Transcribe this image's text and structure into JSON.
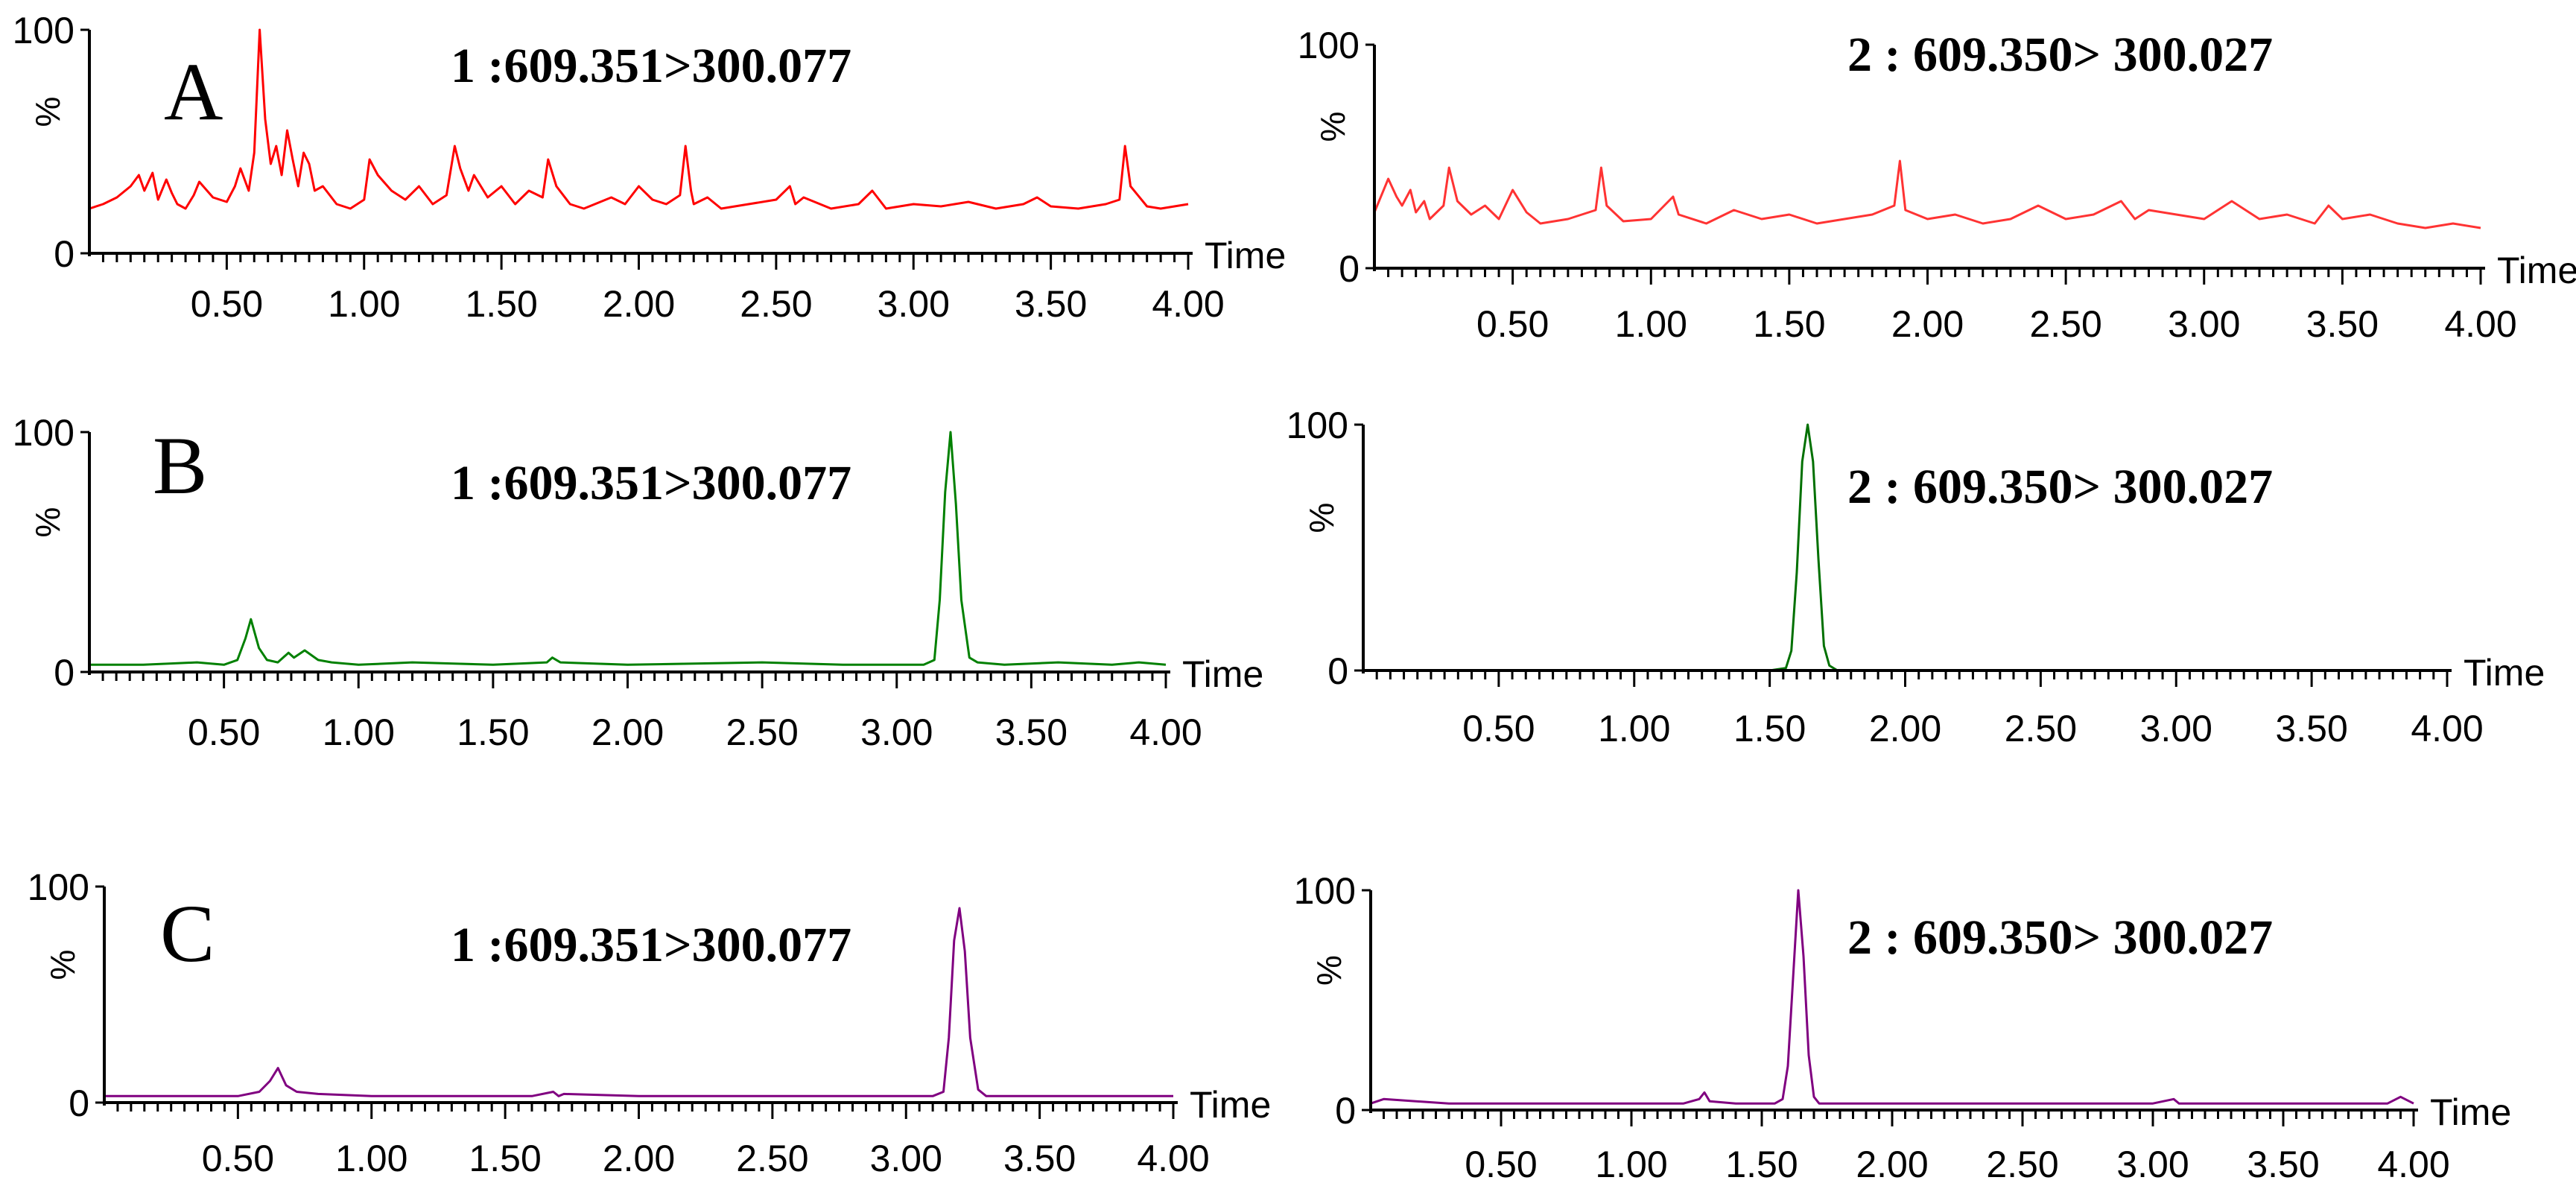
{
  "chart_data": [
    {
      "type": "line",
      "panel": "A",
      "title": "1 :609.351>300.077",
      "xlabel": "Time",
      "ylabel": "%",
      "xlim": [
        0,
        4.0
      ],
      "ylim": [
        0,
        100
      ],
      "xticks": [
        "0.50",
        "1.00",
        "1.50",
        "2.00",
        "2.50",
        "3.00",
        "3.50",
        "4.00"
      ],
      "yticks": [
        "0",
        "100"
      ],
      "color": "#ff0000",
      "series": [
        {
          "name": "1 :609.351>300.077",
          "x": [
            0.0,
            0.05,
            0.1,
            0.15,
            0.18,
            0.2,
            0.23,
            0.25,
            0.28,
            0.3,
            0.32,
            0.35,
            0.38,
            0.4,
            0.45,
            0.5,
            0.53,
            0.55,
            0.58,
            0.6,
            0.62,
            0.64,
            0.66,
            0.68,
            0.7,
            0.72,
            0.74,
            0.76,
            0.78,
            0.8,
            0.82,
            0.85,
            0.9,
            0.95,
            1.0,
            1.02,
            1.05,
            1.1,
            1.15,
            1.2,
            1.25,
            1.3,
            1.33,
            1.35,
            1.38,
            1.4,
            1.45,
            1.5,
            1.55,
            1.6,
            1.65,
            1.67,
            1.7,
            1.75,
            1.8,
            1.9,
            1.95,
            2.0,
            2.05,
            2.1,
            2.15,
            2.17,
            2.19,
            2.2,
            2.25,
            2.3,
            2.4,
            2.5,
            2.55,
            2.57,
            2.6,
            2.7,
            2.8,
            2.85,
            2.9,
            3.0,
            3.1,
            3.2,
            3.3,
            3.4,
            3.45,
            3.5,
            3.6,
            3.7,
            3.75,
            3.77,
            3.79,
            3.85,
            3.9,
            4.0
          ],
          "y": [
            20,
            22,
            25,
            30,
            35,
            28,
            36,
            24,
            33,
            27,
            22,
            20,
            26,
            32,
            25,
            23,
            30,
            38,
            28,
            45,
            100,
            60,
            40,
            48,
            35,
            55,
            42,
            30,
            45,
            40,
            28,
            30,
            22,
            20,
            24,
            42,
            35,
            28,
            24,
            30,
            22,
            26,
            48,
            38,
            28,
            35,
            25,
            30,
            22,
            28,
            25,
            42,
            30,
            22,
            20,
            25,
            22,
            30,
            24,
            22,
            26,
            48,
            28,
            22,
            25,
            20,
            22,
            24,
            30,
            22,
            25,
            20,
            22,
            28,
            20,
            22,
            21,
            23,
            20,
            22,
            25,
            21,
            20,
            22,
            24,
            48,
            30,
            21,
            20,
            22
          ]
        }
      ]
    },
    {
      "type": "line",
      "panel": "A",
      "title": "2 : 609.350> 300.027",
      "xlabel": "Time",
      "ylabel": "%",
      "xlim": [
        0,
        4.0
      ],
      "ylim": [
        0,
        100
      ],
      "xticks": [
        "0.50",
        "1.00",
        "1.50",
        "2.00",
        "2.50",
        "3.00",
        "3.50",
        "4.00"
      ],
      "yticks": [
        "0",
        "100"
      ],
      "color": "#ff3333",
      "series": [
        {
          "name": "2 : 609.350> 300.027",
          "x": [
            0.0,
            0.05,
            0.08,
            0.1,
            0.13,
            0.15,
            0.18,
            0.2,
            0.25,
            0.27,
            0.3,
            0.35,
            0.4,
            0.45,
            0.5,
            0.55,
            0.6,
            0.7,
            0.8,
            0.82,
            0.84,
            0.9,
            1.0,
            1.08,
            1.1,
            1.2,
            1.3,
            1.4,
            1.5,
            1.6,
            1.7,
            1.8,
            1.88,
            1.9,
            1.92,
            2.0,
            2.1,
            2.2,
            2.3,
            2.4,
            2.5,
            2.6,
            2.7,
            2.75,
            2.8,
            2.9,
            3.0,
            3.05,
            3.1,
            3.2,
            3.3,
            3.4,
            3.45,
            3.5,
            3.6,
            3.7,
            3.8,
            3.9,
            4.0
          ],
          "y": [
            25,
            40,
            32,
            28,
            35,
            25,
            30,
            22,
            28,
            45,
            30,
            24,
            28,
            22,
            35,
            25,
            20,
            22,
            26,
            45,
            28,
            21,
            22,
            32,
            24,
            20,
            26,
            22,
            24,
            20,
            22,
            24,
            28,
            48,
            26,
            22,
            24,
            20,
            22,
            28,
            22,
            24,
            30,
            22,
            26,
            24,
            22,
            26,
            30,
            22,
            24,
            20,
            28,
            22,
            24,
            20,
            18,
            20,
            18
          ]
        }
      ]
    },
    {
      "type": "line",
      "panel": "B",
      "title": "1 :609.351>300.077",
      "xlabel": "Time",
      "ylabel": "%",
      "xlim": [
        0,
        4.0
      ],
      "ylim": [
        0,
        100
      ],
      "xticks": [
        "0.50",
        "1.00",
        "1.50",
        "2.00",
        "2.50",
        "3.00",
        "3.50",
        "4.00"
      ],
      "yticks": [
        "0",
        "100"
      ],
      "color": "#008000",
      "series": [
        {
          "name": "1 :609.351>300.077",
          "x": [
            0.0,
            0.2,
            0.4,
            0.5,
            0.55,
            0.58,
            0.6,
            0.63,
            0.66,
            0.7,
            0.74,
            0.76,
            0.8,
            0.85,
            0.9,
            1.0,
            1.2,
            1.5,
            1.7,
            1.72,
            1.75,
            2.0,
            2.5,
            2.8,
            3.0,
            3.1,
            3.14,
            3.16,
            3.18,
            3.2,
            3.22,
            3.24,
            3.27,
            3.3,
            3.4,
            3.6,
            3.8,
            3.9,
            4.0
          ],
          "y": [
            3,
            3,
            4,
            3,
            5,
            14,
            22,
            10,
            5,
            4,
            8,
            6,
            9,
            5,
            4,
            3,
            4,
            3,
            4,
            6,
            4,
            3,
            4,
            3,
            3,
            3,
            5,
            30,
            75,
            100,
            70,
            30,
            6,
            4,
            3,
            4,
            3,
            4,
            3
          ]
        }
      ]
    },
    {
      "type": "line",
      "panel": "B",
      "title": "2 : 609.350> 300.027",
      "xlabel": "Time",
      "ylabel": "%",
      "xlim": [
        0,
        4.0
      ],
      "ylim": [
        0,
        100
      ],
      "xticks": [
        "0.50",
        "1.00",
        "1.50",
        "2.00",
        "2.50",
        "3.00",
        "3.50",
        "4.00"
      ],
      "yticks": [
        "0",
        "100"
      ],
      "color": "#007000",
      "series": [
        {
          "name": "2 : 609.350> 300.027",
          "x": [
            0.0,
            0.5,
            1.0,
            1.5,
            1.56,
            1.58,
            1.6,
            1.62,
            1.64,
            1.66,
            1.68,
            1.7,
            1.72,
            1.75,
            2.0,
            2.5,
            3.0,
            3.5,
            4.0
          ],
          "y": [
            0,
            0,
            0,
            0,
            1,
            8,
            40,
            85,
            100,
            85,
            45,
            10,
            2,
            0,
            0,
            0,
            0,
            0,
            0
          ]
        }
      ]
    },
    {
      "type": "line",
      "panel": "C",
      "title": "1 :609.351>300.077",
      "xlabel": "Time",
      "ylabel": "%",
      "xlim": [
        0,
        4.0
      ],
      "ylim": [
        0,
        100
      ],
      "xticks": [
        "0.50",
        "1.00",
        "1.50",
        "2.00",
        "2.50",
        "3.00",
        "3.50",
        "4.00"
      ],
      "yticks": [
        "0",
        "100"
      ],
      "color": "#800080",
      "series": [
        {
          "name": "1 :609.351>300.077",
          "x": [
            0.0,
            0.3,
            0.5,
            0.58,
            0.62,
            0.65,
            0.68,
            0.72,
            0.8,
            1.0,
            1.4,
            1.6,
            1.68,
            1.7,
            1.72,
            2.0,
            2.5,
            2.8,
            3.0,
            3.1,
            3.14,
            3.16,
            3.18,
            3.2,
            3.22,
            3.24,
            3.27,
            3.3,
            3.5,
            3.8,
            4.0
          ],
          "y": [
            3,
            3,
            3,
            5,
            10,
            16,
            8,
            5,
            4,
            3,
            3,
            3,
            5,
            3,
            4,
            3,
            3,
            3,
            3,
            3,
            5,
            30,
            75,
            90,
            70,
            30,
            6,
            3,
            3,
            3,
            3
          ]
        }
      ]
    },
    {
      "type": "line",
      "panel": "C",
      "title": "2 :   609.350> 300.027",
      "xlabel": "Time",
      "ylabel": "%",
      "xlim": [
        0,
        4.0
      ],
      "ylim": [
        0,
        100
      ],
      "xticks": [
        "0.50",
        "1.00",
        "1.50",
        "2.00",
        "2.50",
        "3.00",
        "3.50",
        "4.00"
      ],
      "yticks": [
        "0",
        "100"
      ],
      "color": "#800080",
      "series": [
        {
          "name": "2 :   609.350> 300.027",
          "x": [
            0.0,
            0.05,
            0.3,
            0.6,
            0.9,
            1.2,
            1.26,
            1.28,
            1.3,
            1.4,
            1.55,
            1.58,
            1.6,
            1.62,
            1.64,
            1.66,
            1.68,
            1.7,
            1.72,
            1.75,
            2.0,
            2.5,
            3.0,
            3.08,
            3.1,
            3.5,
            3.9,
            3.95,
            4.0
          ],
          "y": [
            3,
            5,
            3,
            3,
            3,
            3,
            5,
            8,
            4,
            3,
            3,
            5,
            20,
            60,
            100,
            70,
            25,
            6,
            3,
            3,
            3,
            3,
            3,
            5,
            3,
            3,
            3,
            6,
            3
          ]
        }
      ]
    }
  ],
  "panels": [
    {
      "letter": "A"
    },
    {
      "letter": "B"
    },
    {
      "letter": "C"
    }
  ]
}
